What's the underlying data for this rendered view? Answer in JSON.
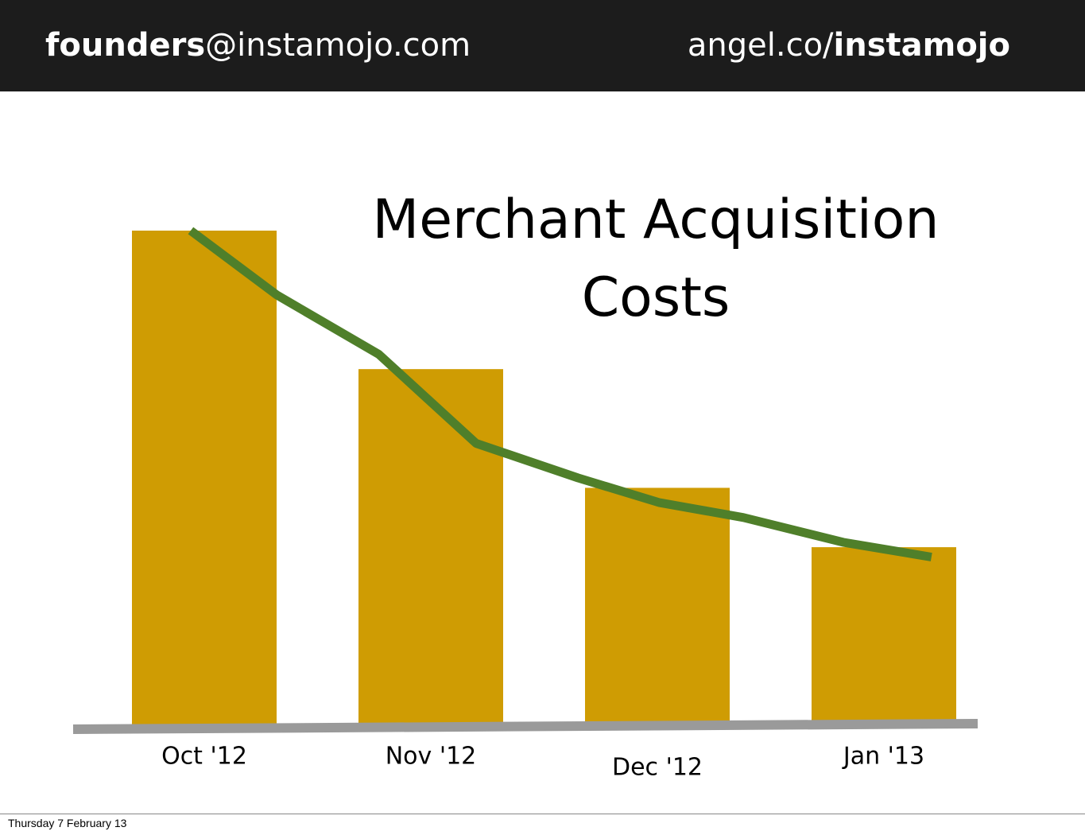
{
  "header": {
    "left_bold": "founders",
    "left_rest": "@instamojo.com",
    "right_rest": "angel.co/",
    "right_bold": "instamojo"
  },
  "footer": "Thursday 7 February 13",
  "chart_data": {
    "type": "bar",
    "title": "Merchant Acquisition Costs",
    "categories": [
      "Oct '12",
      "Nov '12",
      "Dec '12",
      "Jan '13"
    ],
    "values": [
      100,
      72,
      48,
      36
    ],
    "color": "#cf9c03",
    "ylim": [
      0,
      100
    ],
    "trend": {
      "color": "#4f7f2a",
      "x": [
        -0.06,
        0.32,
        0.77,
        1.2,
        1.65,
        2.01,
        2.38,
        2.82,
        3.21
      ],
      "values": [
        100,
        87,
        75,
        57,
        50,
        45,
        42,
        37,
        34
      ]
    }
  }
}
